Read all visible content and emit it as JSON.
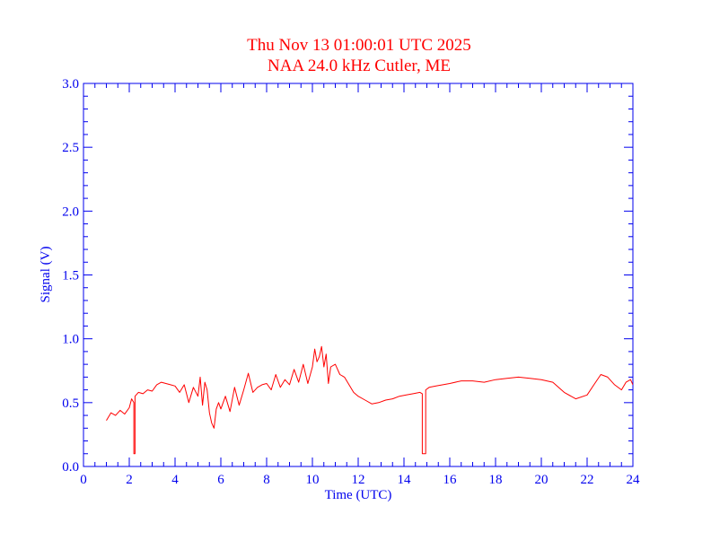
{
  "chart_data": {
    "type": "line",
    "title": "Thu Nov 13 01:00:01 UTC 2025",
    "subtitle": "NAA 24.0 kHz Cutler, ME",
    "xlabel": "Time (UTC)",
    "ylabel": "Signal (V)",
    "xlim": [
      0,
      24
    ],
    "ylim": [
      0,
      3.0
    ],
    "xticks": [
      0,
      2,
      4,
      6,
      8,
      10,
      12,
      14,
      16,
      18,
      20,
      22,
      24
    ],
    "xtick_labels": [
      "0",
      "2",
      "4",
      "6",
      "8",
      "10",
      "12",
      "14",
      "16",
      "18",
      "20",
      "22",
      "24"
    ],
    "yticks": [
      0,
      0.5,
      1.0,
      1.5,
      2.0,
      2.5,
      3.0
    ],
    "ytick_labels": [
      "0.0",
      "0.5",
      "1.0",
      "1.5",
      "2.0",
      "2.5",
      "3.0"
    ],
    "grid": false,
    "colors": {
      "axis": "#0000ee",
      "series": "#ff0000",
      "title": "#ff0000"
    },
    "series": [
      {
        "x": [
          1.0,
          1.2,
          1.4,
          1.6,
          1.8,
          2.0,
          2.1,
          2.2,
          2.2,
          2.25,
          2.25,
          2.4,
          2.6,
          2.8,
          3.0,
          3.2,
          3.4,
          3.6,
          3.8,
          4.0,
          4.2,
          4.4,
          4.6,
          4.8,
          5.0,
          5.1,
          5.2,
          5.3,
          5.4,
          5.5,
          5.6,
          5.7,
          5.8,
          5.9,
          6.0,
          6.2,
          6.4,
          6.6,
          6.8,
          7.0,
          7.2,
          7.4,
          7.6,
          7.8,
          8.0,
          8.2,
          8.4,
          8.6,
          8.8,
          9.0,
          9.2,
          9.4,
          9.6,
          9.8,
          10.0,
          10.1,
          10.2,
          10.3,
          10.4,
          10.5,
          10.6,
          10.7,
          10.8,
          11.0,
          11.2,
          11.4,
          11.6,
          11.8,
          12.0,
          12.3,
          12.6,
          12.9,
          13.2,
          13.5,
          13.8,
          14.1,
          14.4,
          14.7,
          14.8,
          14.8,
          14.95,
          14.95,
          15.1,
          15.4,
          15.7,
          16.0,
          16.5,
          17.0,
          17.5,
          18.0,
          18.5,
          19.0,
          19.5,
          20.0,
          20.5,
          21.0,
          21.5,
          22.0,
          22.3,
          22.6,
          22.9,
          23.2,
          23.5,
          23.7,
          23.9,
          24.0
        ],
        "values": [
          0.36,
          0.42,
          0.4,
          0.44,
          0.41,
          0.46,
          0.53,
          0.5,
          0.1,
          0.1,
          0.55,
          0.58,
          0.57,
          0.6,
          0.59,
          0.64,
          0.66,
          0.65,
          0.64,
          0.63,
          0.58,
          0.64,
          0.5,
          0.62,
          0.55,
          0.7,
          0.48,
          0.66,
          0.6,
          0.42,
          0.34,
          0.3,
          0.45,
          0.5,
          0.45,
          0.55,
          0.43,
          0.62,
          0.48,
          0.6,
          0.73,
          0.58,
          0.62,
          0.64,
          0.65,
          0.6,
          0.72,
          0.62,
          0.68,
          0.64,
          0.76,
          0.66,
          0.8,
          0.65,
          0.78,
          0.92,
          0.82,
          0.86,
          0.94,
          0.78,
          0.88,
          0.65,
          0.78,
          0.8,
          0.72,
          0.7,
          0.64,
          0.58,
          0.55,
          0.52,
          0.49,
          0.5,
          0.52,
          0.53,
          0.55,
          0.56,
          0.57,
          0.58,
          0.57,
          0.1,
          0.1,
          0.6,
          0.62,
          0.63,
          0.64,
          0.65,
          0.67,
          0.67,
          0.66,
          0.68,
          0.69,
          0.7,
          0.69,
          0.68,
          0.66,
          0.58,
          0.53,
          0.56,
          0.64,
          0.72,
          0.7,
          0.64,
          0.6,
          0.66,
          0.68,
          0.64
        ]
      }
    ]
  }
}
